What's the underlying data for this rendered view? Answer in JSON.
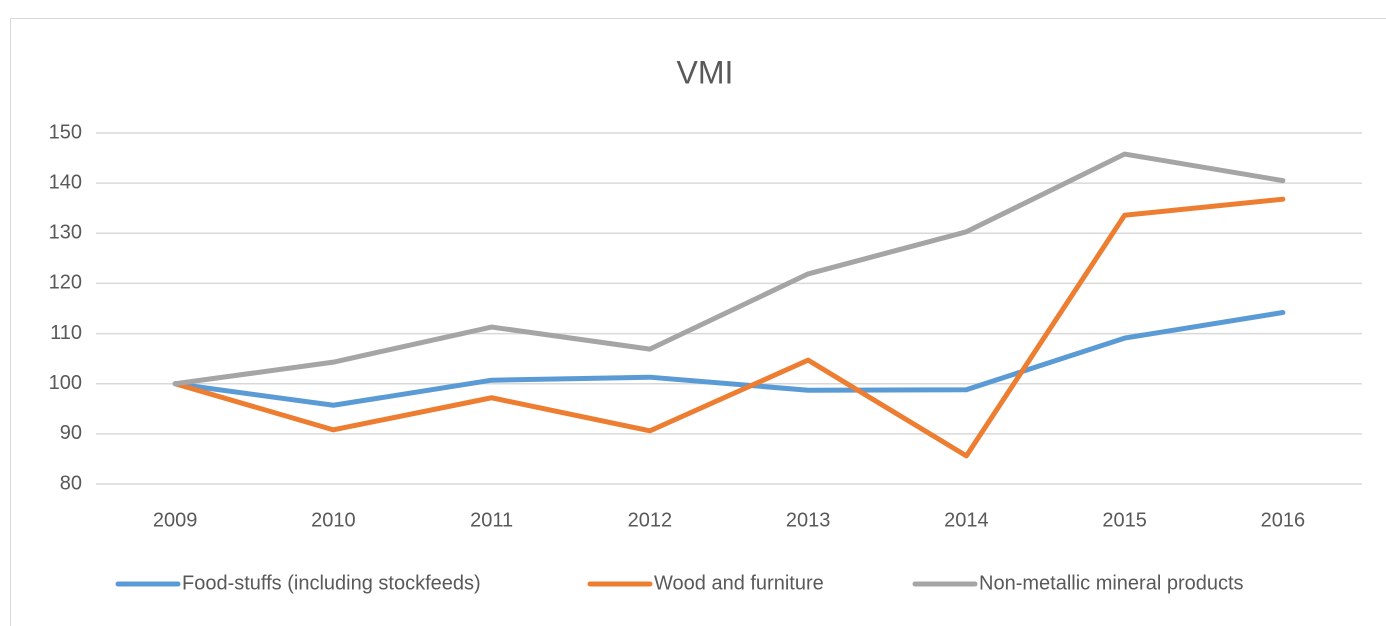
{
  "chart_data": {
    "type": "line",
    "title": "VMI",
    "categories": [
      "2009",
      "2010",
      "2011",
      "2012",
      "2013",
      "2014",
      "2015",
      "2016"
    ],
    "series": [
      {
        "name": "Food-stuffs (including stockfeeds)",
        "color": "#5b9bd5",
        "values": [
          100,
          95.7,
          100.7,
          101.3,
          98.7,
          98.8,
          109.1,
          114.2
        ]
      },
      {
        "name": "Wood and furniture",
        "color": "#ed7d31",
        "values": [
          100,
          90.8,
          97.2,
          90.6,
          104.7,
          85.6,
          133.6,
          136.8
        ]
      },
      {
        "name": "Non-metallic mineral products",
        "color": "#a5a5a5",
        "values": [
          100,
          104.3,
          111.3,
          106.9,
          121.9,
          130.3,
          145.8,
          140.5
        ]
      }
    ],
    "ylim": [
      80,
      150
    ],
    "yticks": [
      80,
      90,
      100,
      110,
      120,
      130,
      140,
      150
    ],
    "grid": true,
    "legend": "bottom"
  }
}
